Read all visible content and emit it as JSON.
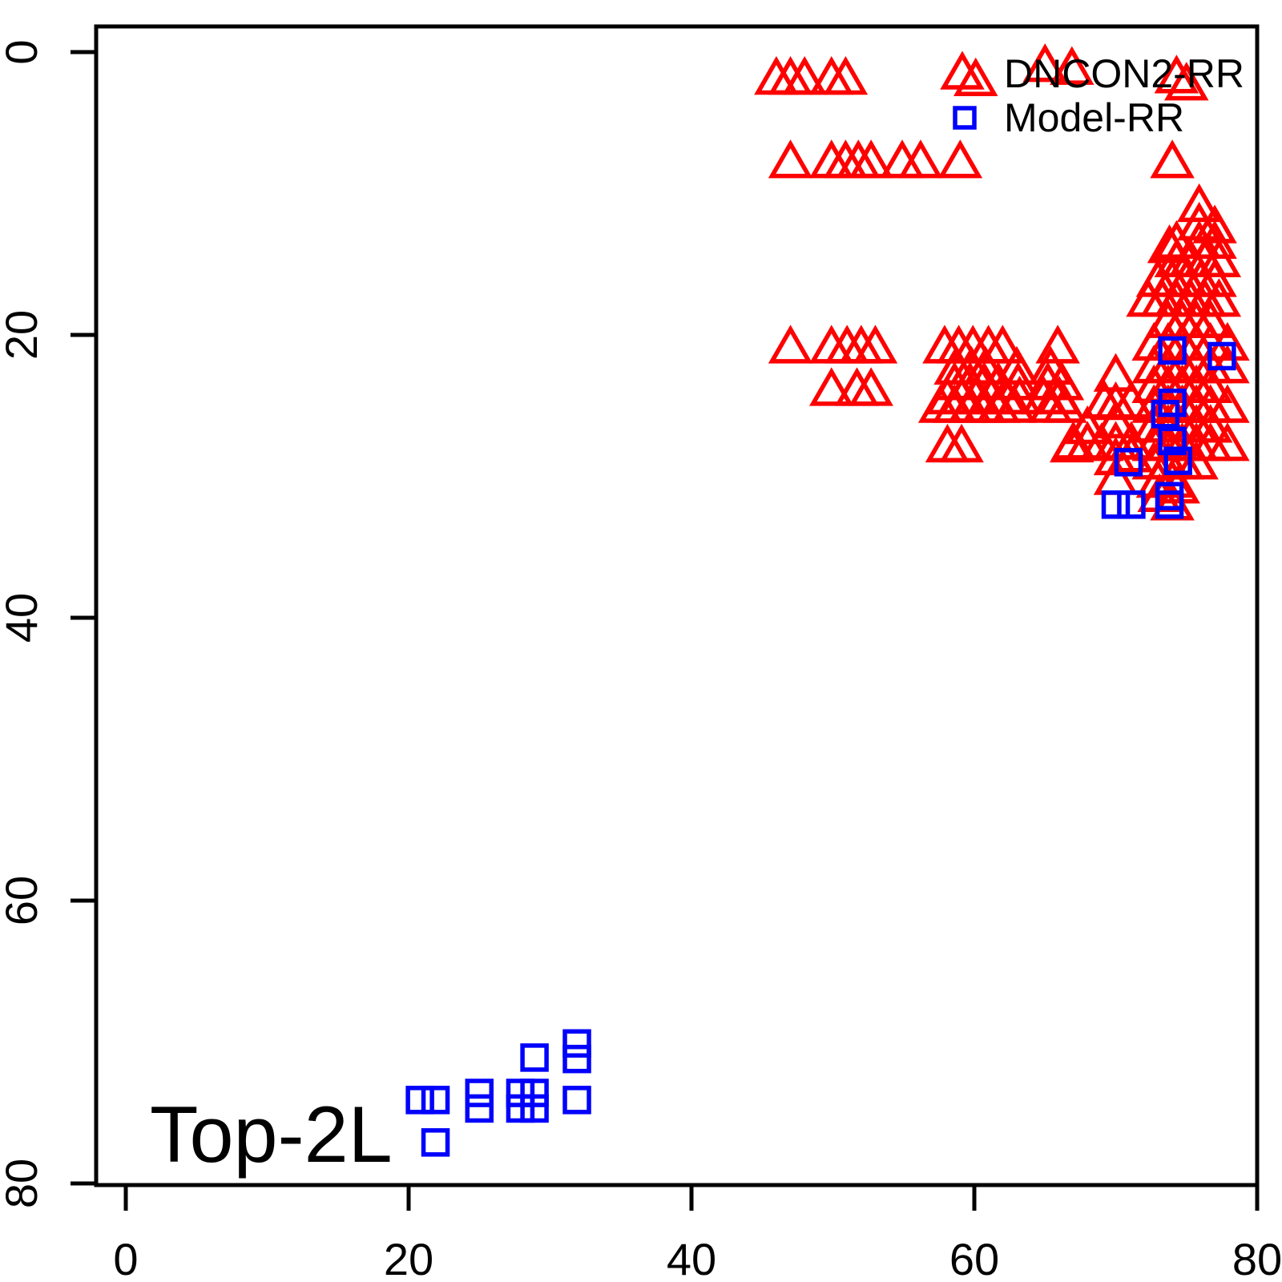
{
  "chart_data": {
    "type": "scatter",
    "title": "",
    "annotation": "Top-2L",
    "x_axis": {
      "range": [
        0,
        80
      ],
      "ticks": [
        0,
        20,
        40,
        60,
        80
      ]
    },
    "y_axis": {
      "range": [
        0,
        80
      ],
      "ticks": [
        0,
        20,
        40,
        60,
        80
      ],
      "reversed": true
    },
    "grid": false,
    "colors": {
      "axis": "#000000",
      "background": "#FFFFFF",
      "dncon2": "#FF0000",
      "model": "#0000FF"
    },
    "legend": {
      "position": "topright",
      "items": [
        {
          "label": "DNCON2-RR",
          "marker": "triangle",
          "color": "#FF0000"
        },
        {
          "label": "Model-RR",
          "marker": "square",
          "color": "#0000FF"
        }
      ]
    },
    "series": [
      {
        "name": "DNCON2-RR",
        "marker": "triangle",
        "color": "#FF0000",
        "points": [
          [
            46,
            1.9
          ],
          [
            47,
            1.9
          ],
          [
            48,
            1.9
          ],
          [
            49.9,
            1.9
          ],
          [
            50.9,
            1.9
          ],
          [
            60.1,
            2
          ],
          [
            65,
            1
          ],
          [
            66.9,
            1.2
          ],
          [
            74.3,
            1.8
          ],
          [
            75,
            2.3
          ],
          [
            47,
            7.8
          ],
          [
            49.9,
            7.8
          ],
          [
            50.9,
            7.8
          ],
          [
            51.8,
            7.8
          ],
          [
            52.7,
            7.8
          ],
          [
            54.9,
            7.8
          ],
          [
            56.2,
            7.8
          ],
          [
            59,
            7.8
          ],
          [
            74,
            7.8
          ],
          [
            47,
            20.9
          ],
          [
            49.9,
            20.9
          ],
          [
            51,
            20.9
          ],
          [
            52,
            20.9
          ],
          [
            53,
            20.9
          ],
          [
            57.9,
            20.9
          ],
          [
            58.9,
            20.9
          ],
          [
            59.9,
            20.9
          ],
          [
            61,
            20.9
          ],
          [
            62,
            20.9
          ],
          [
            65.9,
            20.9
          ],
          [
            58.7,
            22.4
          ],
          [
            59.8,
            22.4
          ],
          [
            60.8,
            22.4
          ],
          [
            63,
            22.4
          ],
          [
            65.4,
            22.4
          ],
          [
            49.9,
            23.9
          ],
          [
            51.7,
            23.9
          ],
          [
            52.7,
            23.9
          ],
          [
            58.6,
            23.5
          ],
          [
            59.7,
            23.5
          ],
          [
            60.7,
            23.5
          ],
          [
            61.7,
            23.5
          ],
          [
            63.1,
            23.5
          ],
          [
            65.2,
            23.5
          ],
          [
            66.2,
            23.5
          ],
          [
            58.1,
            24.5
          ],
          [
            59.1,
            24.5
          ],
          [
            60.1,
            24.5
          ],
          [
            61.2,
            24.5
          ],
          [
            62.2,
            24.5
          ],
          [
            63.2,
            24.5
          ],
          [
            64.9,
            24.5
          ],
          [
            66,
            24.5
          ],
          [
            57.6,
            25.1
          ],
          [
            58.6,
            25.1
          ],
          [
            59.7,
            25.1
          ],
          [
            60.7,
            25.1
          ],
          [
            61.7,
            25.1
          ],
          [
            62.8,
            25.1
          ],
          [
            65.4,
            25.1
          ],
          [
            66.4,
            25.1
          ],
          [
            58.1,
            27.9
          ],
          [
            59.1,
            27.9
          ],
          [
            66.9,
            27.9
          ],
          [
            70,
            22.9
          ],
          [
            69.2,
            24.8
          ],
          [
            70,
            24.9
          ],
          [
            71.1,
            24.8
          ],
          [
            70,
            26.2
          ],
          [
            68,
            26.6
          ],
          [
            67,
            27.7
          ],
          [
            68,
            27.7
          ],
          [
            69,
            27.8
          ],
          [
            70,
            27.7
          ],
          [
            71.1,
            27.7
          ],
          [
            70,
            28.8
          ],
          [
            71.1,
            28.6
          ],
          [
            70,
            30.2
          ],
          [
            75.9,
            10.9
          ],
          [
            75.9,
            12.2
          ],
          [
            77,
            12.4
          ],
          [
            73.8,
            13.8
          ],
          [
            74.3,
            13.5
          ],
          [
            75.9,
            13.5
          ],
          [
            77,
            13.5
          ],
          [
            74.3,
            14.8
          ],
          [
            75.3,
            14.8
          ],
          [
            76.3,
            14.8
          ],
          [
            77.3,
            14.8
          ],
          [
            73,
            16.2
          ],
          [
            74,
            16.2
          ],
          [
            75,
            16.2
          ],
          [
            76,
            16.2
          ],
          [
            77,
            16.2
          ],
          [
            72.3,
            17.6
          ],
          [
            73.3,
            17.6
          ],
          [
            74.3,
            17.6
          ],
          [
            75.3,
            17.6
          ],
          [
            76.3,
            17.6
          ],
          [
            77.3,
            17.6
          ],
          [
            73.7,
            19.1
          ],
          [
            74.7,
            19.1
          ],
          [
            75.7,
            19.1
          ],
          [
            76.7,
            19.1
          ],
          [
            72.7,
            20.7
          ],
          [
            73.7,
            20.7
          ],
          [
            74.7,
            20.7
          ],
          [
            75.7,
            20.7
          ],
          [
            76.7,
            20.7
          ],
          [
            77.9,
            20.7
          ],
          [
            72.7,
            22.3
          ],
          [
            73.7,
            22.3
          ],
          [
            74.7,
            22.3
          ],
          [
            75.7,
            22.3
          ],
          [
            76.7,
            22.3
          ],
          [
            77.9,
            22.3
          ],
          [
            72.7,
            23.7
          ],
          [
            73.7,
            23.7
          ],
          [
            74.7,
            23.7
          ],
          [
            75.7,
            23.7
          ],
          [
            76.7,
            23.7
          ],
          [
            72.7,
            25.1
          ],
          [
            73.7,
            25.1
          ],
          [
            74.7,
            25.1
          ],
          [
            75.7,
            25.1
          ],
          [
            76.7,
            25.1
          ],
          [
            77.9,
            25.1
          ],
          [
            72.7,
            26.5
          ],
          [
            73.7,
            26.5
          ],
          [
            74.7,
            26.5
          ],
          [
            75.7,
            26.5
          ],
          [
            76.7,
            26.5
          ],
          [
            72.7,
            27.8
          ],
          [
            73.7,
            27.8
          ],
          [
            74.7,
            27.8
          ],
          [
            75.7,
            27.8
          ],
          [
            76.7,
            27.8
          ],
          [
            77.9,
            27.8
          ],
          [
            72.7,
            29.1
          ],
          [
            73.7,
            29.1
          ],
          [
            74.7,
            29.1
          ],
          [
            75.7,
            29.1
          ],
          [
            73,
            30.4
          ],
          [
            74,
            30.4
          ],
          [
            74.4,
            30.8
          ],
          [
            73.1,
            31.4
          ],
          [
            74,
            32
          ]
        ]
      },
      {
        "name": "Model-RR",
        "marker": "square",
        "color": "#0000FF",
        "points": [
          [
            20.8,
            74.1
          ],
          [
            21.9,
            74.1
          ],
          [
            25,
            73.6
          ],
          [
            25,
            74.7
          ],
          [
            27.9,
            73.6
          ],
          [
            28.9,
            73.6
          ],
          [
            27.9,
            74.7
          ],
          [
            28.9,
            74.7
          ],
          [
            31.9,
            74.1
          ],
          [
            28.9,
            71.1
          ],
          [
            31.9,
            70.1
          ],
          [
            31.9,
            71.2
          ],
          [
            21.9,
            77.1
          ],
          [
            70,
            32
          ],
          [
            71.1,
            32
          ],
          [
            73.8,
            32
          ],
          [
            74,
            21.1
          ],
          [
            77.5,
            21.5
          ],
          [
            74,
            24.8
          ],
          [
            73.5,
            25.6
          ],
          [
            74,
            27.5
          ],
          [
            70.9,
            29
          ],
          [
            74.4,
            28.9
          ],
          [
            73.8,
            31.4
          ]
        ]
      }
    ]
  }
}
